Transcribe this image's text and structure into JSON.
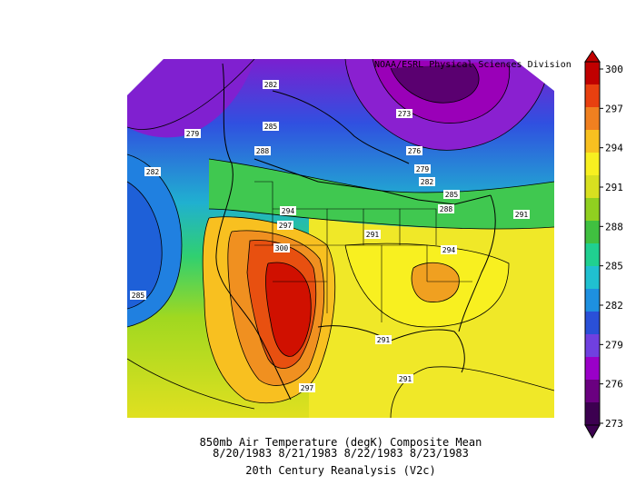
{
  "credit": "NOAA/ESRL Physical Sciences Division",
  "caption": {
    "line1": "850mb Air Temperature (degK) Composite Mean",
    "line2": "8/20/1983 8/21/1983 8/22/1983 8/23/1983",
    "line3": "20th Century Reanalysis (V2c)"
  },
  "colorbar": {
    "ticks": [
      "300",
      "297",
      "294",
      "291",
      "288",
      "285",
      "282",
      "279",
      "276",
      "273"
    ],
    "colors": [
      "#3c0050",
      "#6a0080",
      "#9a00c8",
      "#7040e0",
      "#2a50d8",
      "#1e90e0",
      "#20c0d0",
      "#20d090",
      "#40c040",
      "#90d020",
      "#d8e020",
      "#f8f020",
      "#f8c020",
      "#f08020",
      "#e84010",
      "#c00000"
    ]
  },
  "contour_labels": [
    {
      "text": "282"
    },
    {
      "text": "279"
    },
    {
      "text": "282"
    },
    {
      "text": "285"
    },
    {
      "text": "288"
    },
    {
      "text": "273"
    },
    {
      "text": "276"
    },
    {
      "text": "279"
    },
    {
      "text": "282"
    },
    {
      "text": "285"
    },
    {
      "text": "288"
    },
    {
      "text": "294"
    },
    {
      "text": "297"
    },
    {
      "text": "300"
    },
    {
      "text": "291"
    },
    {
      "text": "291"
    },
    {
      "text": "294"
    },
    {
      "text": "285"
    },
    {
      "text": "291"
    },
    {
      "text": "291"
    },
    {
      "text": "297"
    }
  ]
}
